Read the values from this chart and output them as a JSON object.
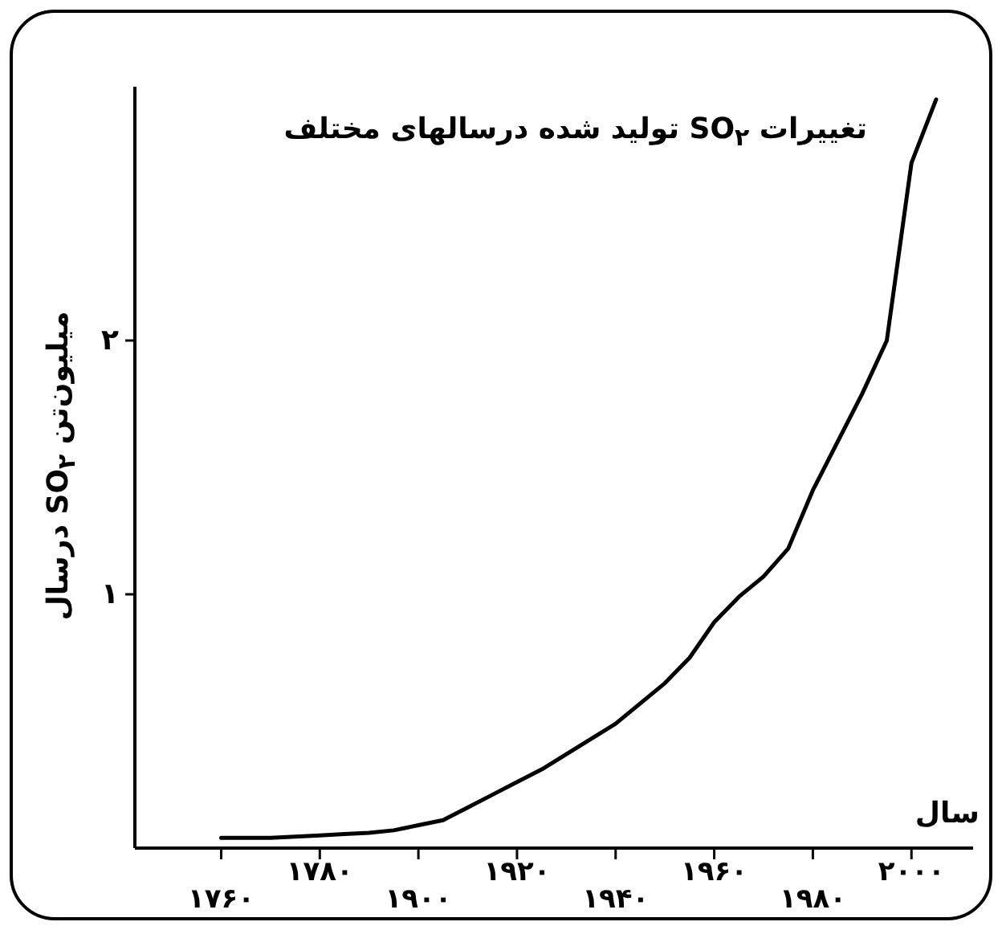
{
  "chart_data": {
    "type": "line",
    "title": "تغییرات SO$_{۲}$ تولید شده درسالهای مختلف",
    "ylabel": "میلیون‌تن SO$_{۲}$ درسال",
    "xlabel": "سال",
    "categories": [
      null,
      null,
      null,
      "۱۷۶۰",
      null,
      null,
      null,
      "۱۷۸۰",
      null,
      null,
      null,
      "۱۹۰۰",
      null,
      null,
      null,
      "۱۹۲۰",
      null,
      null,
      null,
      "۱۹۴۰",
      null,
      null,
      null,
      "۱۹۶۰",
      null,
      null,
      null,
      "۱۹۸۰",
      null,
      null,
      null,
      "۲۰۰۰",
      null,
      null
    ],
    "series": [
      {
        "color": "#000000",
        "values": [
          null,
          null,
          null,
          0.04,
          0.04,
          0.04,
          0.045,
          0.05,
          0.055,
          0.06,
          0.07,
          0.09,
          0.11,
          0.16,
          0.21,
          0.26,
          0.31,
          0.37,
          0.43,
          0.49,
          0.57,
          0.65,
          0.75,
          0.89,
          0.99,
          1.07,
          1.18,
          1.41,
          1.6,
          1.79,
          2.0,
          2.7,
          2.95,
          null
        ]
      }
    ],
    "ylim": [
      0,
      3
    ],
    "yticks": [
      {
        "value": 1,
        "label": "۱"
      },
      {
        "value": 2,
        "label": "۲"
      }
    ],
    "marker": "none",
    "line_style": "solid"
  }
}
